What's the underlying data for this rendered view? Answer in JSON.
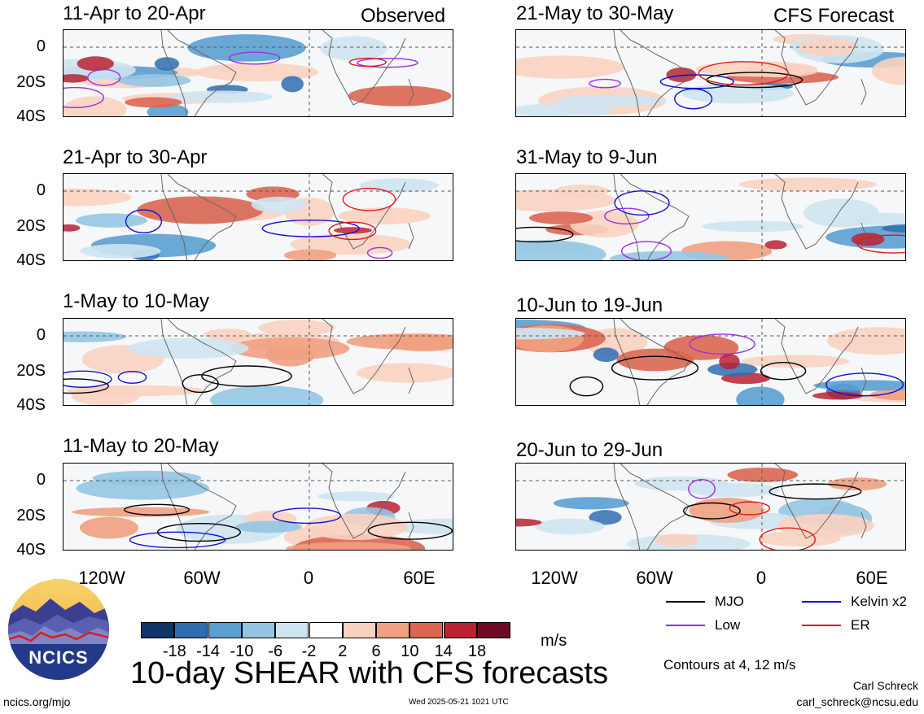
{
  "panels_left": [
    {
      "title": "11-Apr to 20-Apr"
    },
    {
      "title": "21-Apr to 30-Apr"
    },
    {
      "title": "1-May to 10-May"
    },
    {
      "title": "11-May to 20-May"
    }
  ],
  "panels_right": [
    {
      "title": "21-May to 30-May"
    },
    {
      "title": "31-May to 9-Jun"
    },
    {
      "title": "10-Jun to 19-Jun"
    },
    {
      "title": "20-Jun to 29-Jun"
    }
  ],
  "column_labels": {
    "left": "Observed",
    "right": "CFS Forecast"
  },
  "y_ticks": [
    "0",
    "20S",
    "40S"
  ],
  "x_ticks": [
    "120W",
    "60W",
    "0",
    "60E"
  ],
  "legend": {
    "mjo": "MJO",
    "kelvin": "Kelvin x2",
    "low": "Low",
    "er": "ER",
    "colors": {
      "mjo": "#000000",
      "kelvin": "#1010d0",
      "low": "#9a2fe0",
      "er": "#e01a1a"
    }
  },
  "colorbar": {
    "labels": [
      "-18",
      "-14",
      "-10",
      "-6",
      "-2",
      "2",
      "6",
      "10",
      "14",
      "18"
    ],
    "colors": [
      "#0e3468",
      "#2f6db3",
      "#5b9fd2",
      "#95c5e2",
      "#cfe4f1",
      "#ffffff",
      "#f9d2c0",
      "#f1a081",
      "#dc6652",
      "#b82231",
      "#6f0b20"
    ],
    "units": "m/s"
  },
  "title": "10-day SHEAR with CFS forecasts",
  "contours_note": "Contours at 4, 12 m/s",
  "author": "Carl Schreck",
  "email": "carl_schreck@ncsu.edu",
  "site": "ncics.org/mjo",
  "timestamp": "Wed 2025-05-21 1021 UTC",
  "logo_text": "NCICS"
}
